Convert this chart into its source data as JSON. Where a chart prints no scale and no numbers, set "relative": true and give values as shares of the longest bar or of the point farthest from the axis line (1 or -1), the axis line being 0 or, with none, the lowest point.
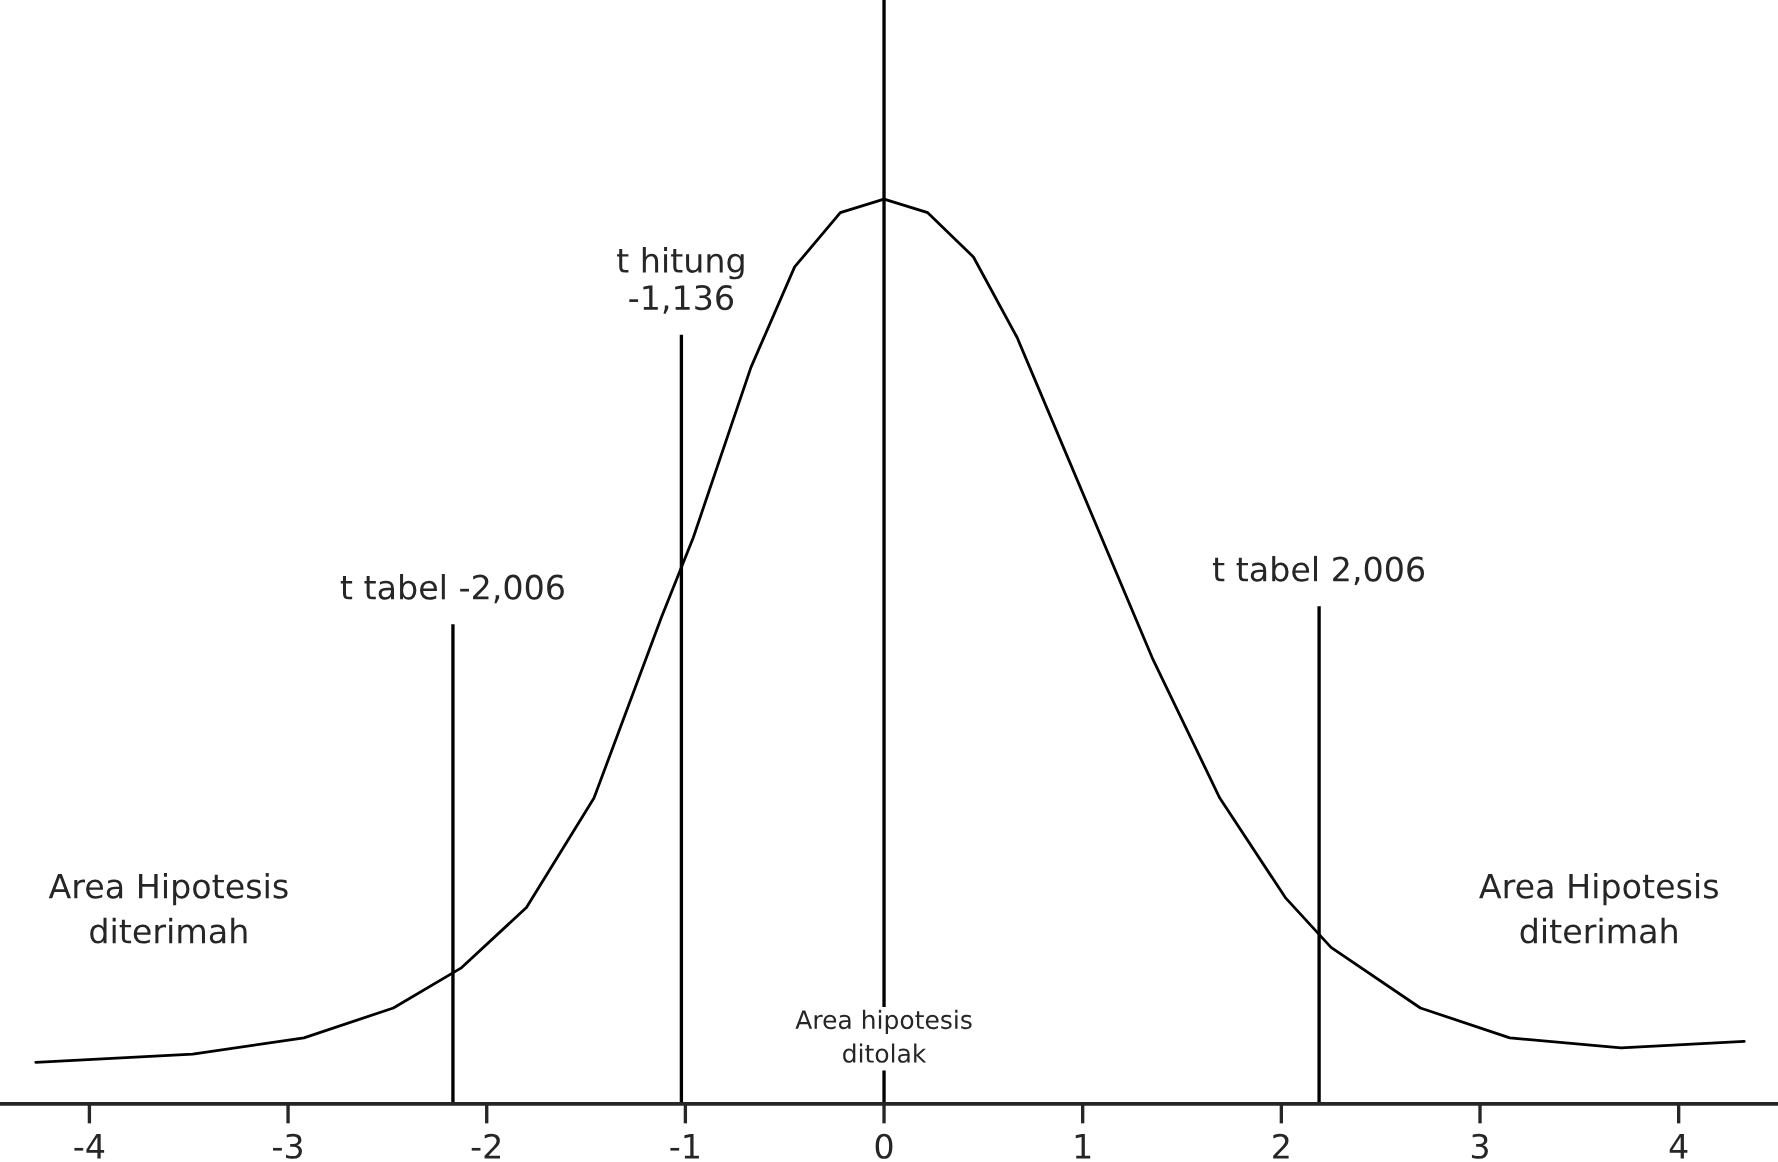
{
  "chart_data": {
    "type": "line",
    "relative": true,
    "color": "#000000",
    "x": [
      -4.27,
      -3.48,
      -2.92,
      -2.47,
      -2.13,
      -1.8,
      -1.46,
      -1.12,
      -0.96,
      -0.67,
      -0.45,
      -0.22,
      0,
      0.22,
      0.45,
      0.67,
      1.01,
      1.35,
      1.69,
      2.02,
      2.25,
      2.7,
      3.15,
      3.71,
      4.33
    ],
    "values": [
      0.046,
      0.055,
      0.073,
      0.106,
      0.15,
      0.217,
      0.338,
      0.538,
      0.626,
      0.814,
      0.925,
      0.985,
      1,
      0.985,
      0.936,
      0.847,
      0.67,
      0.493,
      0.338,
      0.228,
      0.173,
      0.106,
      0.073,
      0.062,
      0.069
    ],
    "xlim": [
      -4.45,
      4.5
    ],
    "xticks": [
      -4,
      -3,
      -2,
      -1,
      0,
      1,
      2,
      3,
      4
    ],
    "ref_lines": [
      {
        "axis": "x",
        "value": -2.17,
        "label": "t tabel -2,006"
      },
      {
        "axis": "x",
        "value": -1.02,
        "label": "t hitung\n-1,136"
      },
      {
        "axis": "x",
        "value": 0
      },
      {
        "axis": "x",
        "value": 2.19,
        "label": "t tabel 2,006"
      }
    ],
    "annotations": [
      "Area Hipotesis\nditerimah",
      "Area Hipotesis\nditerimah",
      "Area hipotesis\nditolak"
    ],
    "grid": false,
    "legend": false
  }
}
